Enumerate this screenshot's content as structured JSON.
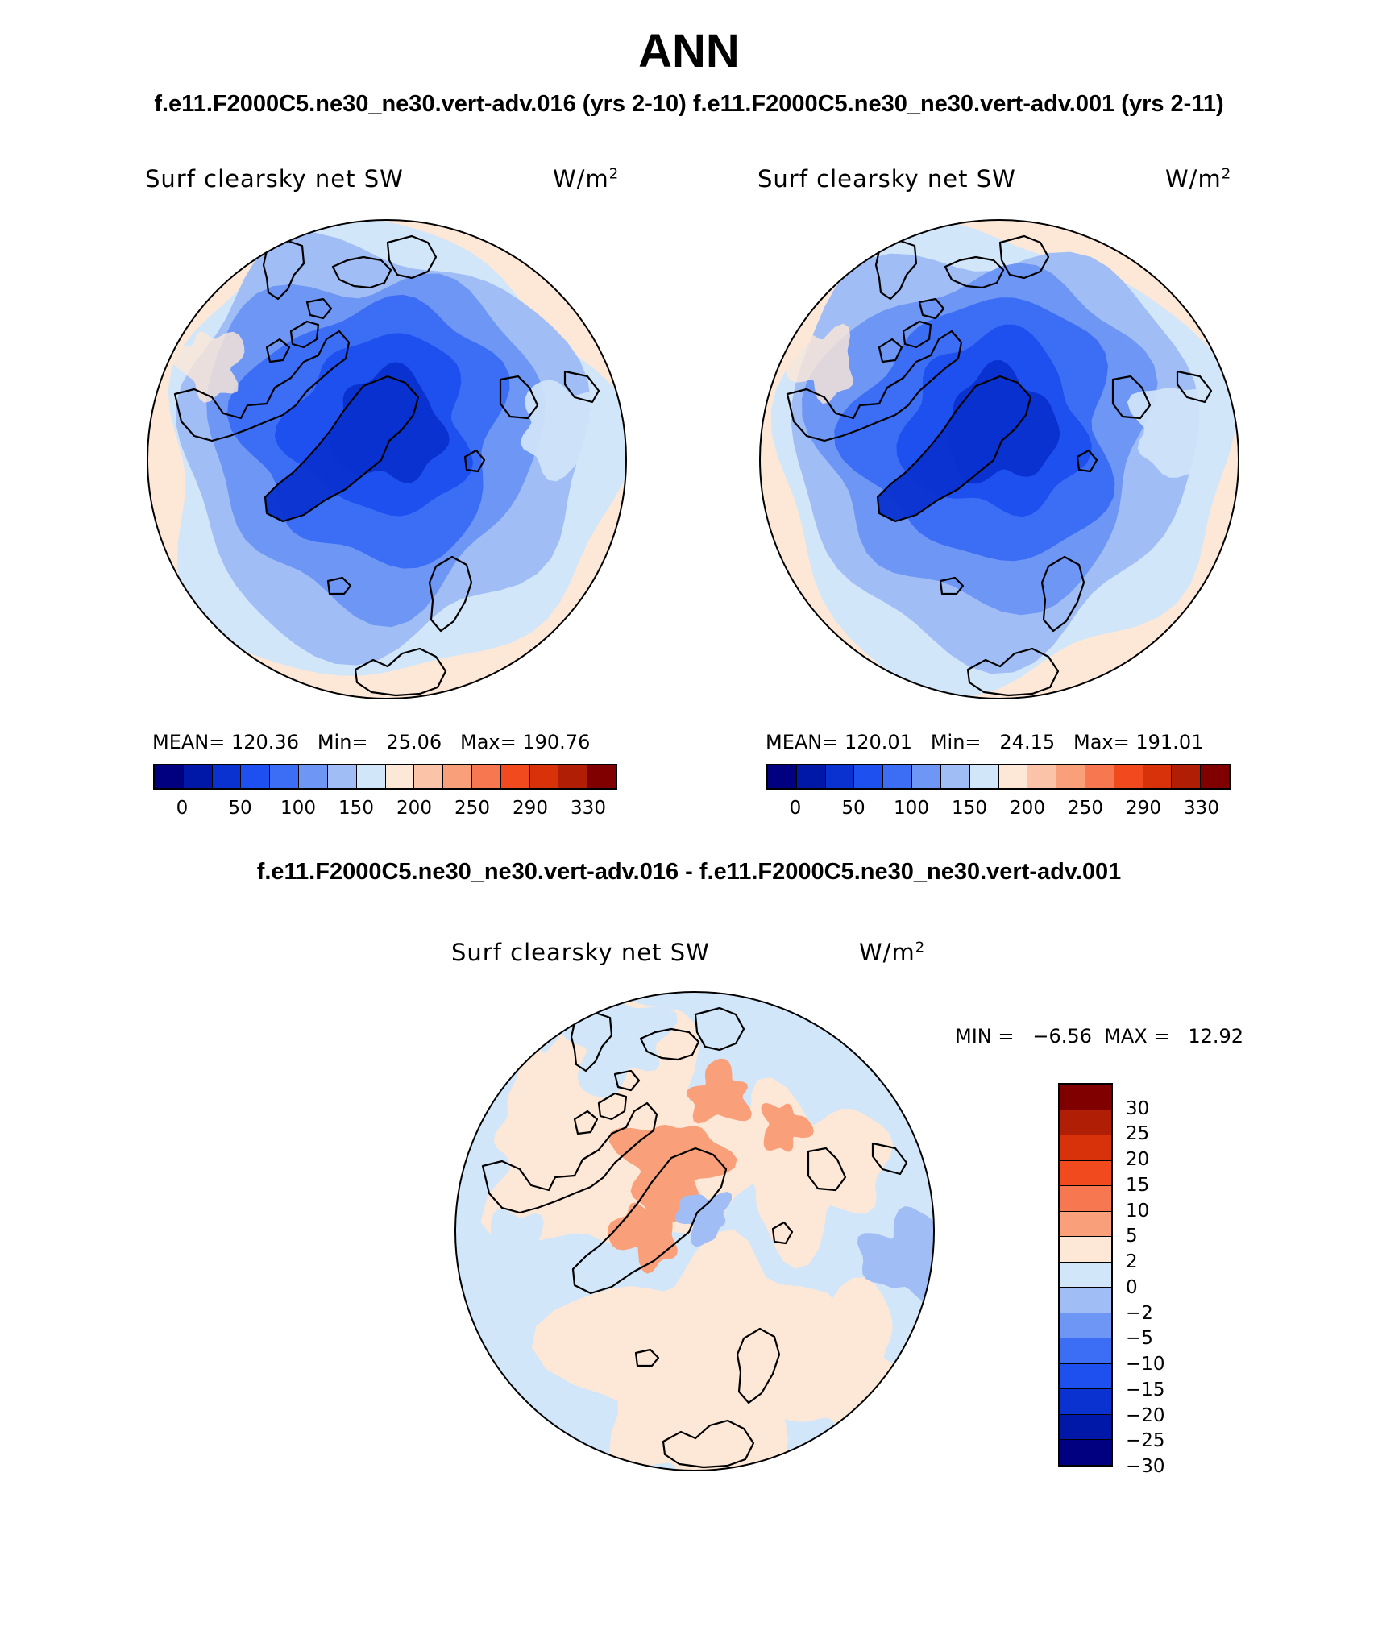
{
  "title": "ANN",
  "subtitle_top": "f.e11.F2000C5.ne30_ne30.vert-adv.016 (yrs 2-10) f.e11.F2000C5.ne30_ne30.vert-adv.001 (yrs 2-11)",
  "subtitle_diff": "f.e11.F2000C5.ne30_ne30.vert-adv.016 - f.e11.F2000C5.ne30_ne30.vert-adv.001",
  "panels": [
    {
      "variable": "Surf clearsky net SW",
      "units": "W/m",
      "units_sup": "2",
      "stats": "MEAN= 120.36   Min=   25.06   Max= 190.76",
      "mean": 120.36,
      "min": 25.06,
      "max": 190.76,
      "scheme": "absolute"
    },
    {
      "variable": "Surf clearsky net SW",
      "units": "W/m",
      "units_sup": "2",
      "stats": "MEAN= 120.01   Min=   24.15   Max= 191.01",
      "mean": 120.01,
      "min": 24.15,
      "max": 191.01,
      "scheme": "absolute"
    }
  ],
  "diff_panel": {
    "variable": "Surf clearsky net SW",
    "units": "W/m",
    "units_sup": "2",
    "stats": "MIN =   −6.56  MAX =   12.92",
    "min": -6.56,
    "max": 12.92
  },
  "colorbar_abs": {
    "colors": [
      "#000080",
      "#0018a8",
      "#0a32d0",
      "#1e50f0",
      "#3c6ef5",
      "#6e96f5",
      "#a0bef5",
      "#d2e6fa",
      "#fde7d7",
      "#fbc4a8",
      "#f9a07a",
      "#f77850",
      "#f04a1e",
      "#d8320a",
      "#b01e05",
      "#800000"
    ],
    "tick_labels": [
      "0",
      "50",
      "100",
      "150",
      "200",
      "250",
      "290",
      "330"
    ]
  },
  "colorbar_diff": {
    "colors": [
      "#800000",
      "#b01e05",
      "#d8320a",
      "#f04a1e",
      "#f77850",
      "#f9a07a",
      "#fde7d7",
      "#d2e6fa",
      "#a0bef5",
      "#6e96f5",
      "#3c6ef5",
      "#1e50f0",
      "#0a32d0",
      "#0018a8",
      "#000080"
    ],
    "tick_labels": [
      "30",
      "25",
      "20",
      "15",
      "10",
      "5",
      "2",
      "0",
      "−2",
      "−5",
      "−10",
      "−15",
      "−20",
      "−25",
      "−30"
    ]
  }
}
